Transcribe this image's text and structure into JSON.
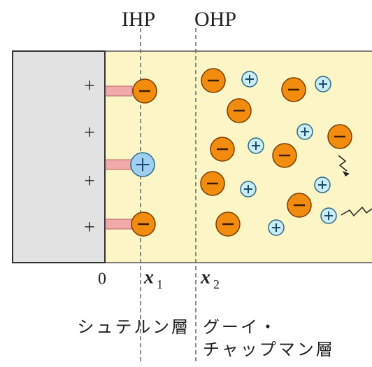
{
  "labels": {
    "ihp": "IHP",
    "ohp": "OHP"
  },
  "charges": [
    "+",
    "+",
    "+",
    "+"
  ],
  "axis": {
    "origin": "0",
    "x1": {
      "var": "x",
      "sub": "1"
    },
    "x2": {
      "var": "x",
      "sub": "2"
    }
  },
  "layers": {
    "stern": "シュテルン層",
    "gouy": [
      "グーイ・",
      "チャップマン層"
    ]
  }
}
